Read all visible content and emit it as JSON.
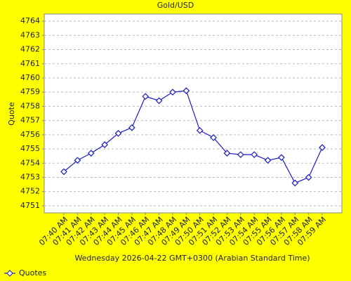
{
  "chart_data": {
    "type": "line",
    "title": "Gold/USD",
    "y_label": "Quote",
    "x_label": "Wednesday 2026-04-22 GMT+0300 (Arabian Standard Time)",
    "categories": [
      "07:40 AM",
      "07:41 AM",
      "07:42 AM",
      "07:43 AM",
      "07:44 AM",
      "07:45 AM",
      "07:46 AM",
      "07:47 AM",
      "07:48 AM",
      "07:49 AM",
      "07:50 AM",
      "07:51 AM",
      "07:52 AM",
      "07:53 AM",
      "07:54 AM",
      "07:55 AM",
      "07:56 AM",
      "07:57 AM",
      "07:58 AM",
      "07:59 AM"
    ],
    "series": [
      {
        "name": "Quotes",
        "color": "#1a1acc",
        "values": [
          4753.4,
          4754.2,
          4754.7,
          4755.3,
          4756.1,
          4756.5,
          4758.7,
          4758.4,
          4759.0,
          4759.1,
          4756.3,
          4755.8,
          4754.7,
          4754.6,
          4754.6,
          4754.2,
          4754.4,
          4752.6,
          4753.0,
          4755.1
        ]
      }
    ],
    "ylim": [
      4750.5,
      4764.5
    ],
    "yticks": [
      4751,
      4752,
      4753,
      4754,
      4755,
      4756,
      4757,
      4758,
      4759,
      4760,
      4761,
      4762,
      4763,
      4764
    ],
    "grid": true,
    "legend": "bottom-left"
  }
}
